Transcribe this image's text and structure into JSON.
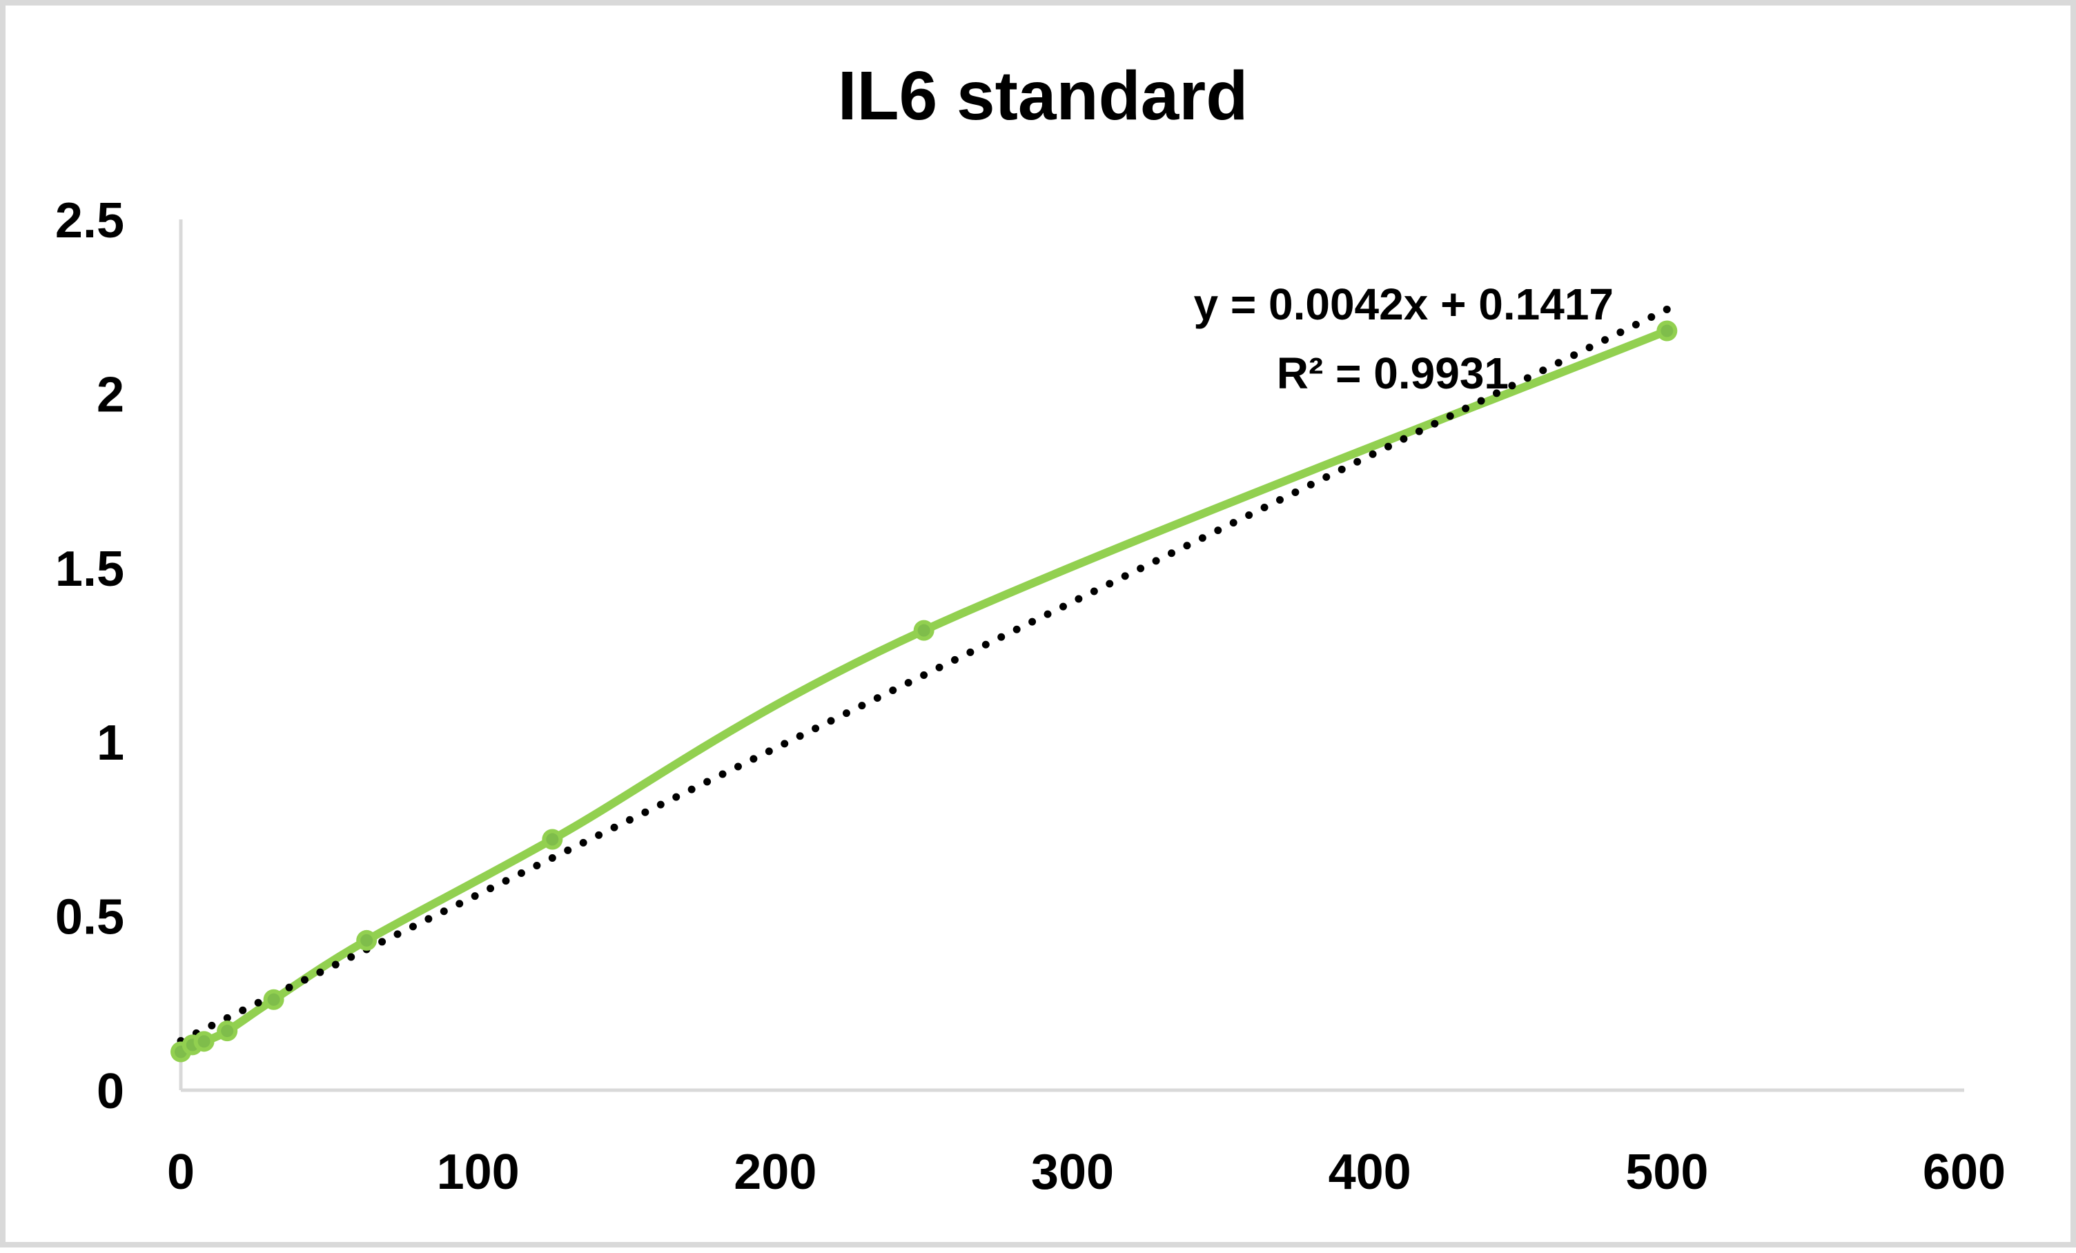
{
  "chart_data": {
    "type": "scatter",
    "title": "IL6 standard",
    "xlabel": "",
    "ylabel": "",
    "xlim": [
      0,
      600
    ],
    "ylim": [
      0,
      2.5
    ],
    "x_ticks": [
      "0",
      "100",
      "200",
      "300",
      "400",
      "500",
      "600"
    ],
    "y_ticks": [
      "0",
      "0.5",
      "1",
      "1.5",
      "2",
      "2.5"
    ],
    "grid": false,
    "legend": "none",
    "series": [
      {
        "x": [
          0,
          3.9,
          7.8,
          15.6,
          31.25,
          62.5,
          125,
          250,
          500
        ],
        "y": [
          0.11,
          0.13,
          0.14,
          0.17,
          0.26,
          0.43,
          0.72,
          1.32,
          2.18
        ],
        "marker_color": "#92d050",
        "line": "smooth",
        "line_color": "#92d050"
      }
    ],
    "trendline": {
      "kind": "linear",
      "slope": 0.0042,
      "intercept": 0.1417,
      "style": "dotted",
      "color": "#000000",
      "equation_label": "y = 0.0042x + 0.1417",
      "r2_label": "R² = 0.9931"
    }
  }
}
